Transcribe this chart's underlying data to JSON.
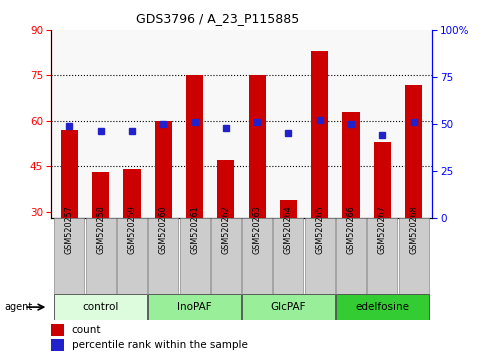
{
  "title": "GDS3796 / A_23_P115885",
  "samples": [
    "GSM520257",
    "GSM520258",
    "GSM520259",
    "GSM520260",
    "GSM520261",
    "GSM520262",
    "GSM520263",
    "GSM520264",
    "GSM520265",
    "GSM520266",
    "GSM520267",
    "GSM520268"
  ],
  "counts": [
    57,
    43,
    44,
    60,
    75,
    47,
    75,
    34,
    83,
    63,
    53,
    72
  ],
  "percentiles": [
    49,
    46,
    46,
    50,
    51,
    48,
    51,
    45,
    52,
    50,
    44,
    51
  ],
  "ylim_left": [
    28,
    90
  ],
  "ylim_right": [
    0,
    100
  ],
  "yticks_left": [
    30,
    45,
    60,
    75,
    90
  ],
  "yticks_right": [
    0,
    25,
    50,
    75,
    100
  ],
  "yticklabels_right": [
    "0",
    "25",
    "50",
    "75",
    "100%"
  ],
  "bar_color": "#cc0000",
  "dot_color": "#2222cc",
  "groups": [
    {
      "label": "control",
      "start": 0,
      "end": 3,
      "color": "#ddfcdd"
    },
    {
      "label": "InoPAF",
      "start": 3,
      "end": 6,
      "color": "#99ee99"
    },
    {
      "label": "GlcPAF",
      "start": 6,
      "end": 9,
      "color": "#99ee99"
    },
    {
      "label": "edelfosine",
      "start": 9,
      "end": 12,
      "color": "#33cc33"
    }
  ],
  "grid_yticks": [
    45,
    60,
    75
  ],
  "sample_box_color": "#cccccc",
  "plot_bg": "#f8f8f8",
  "legend_count_color": "#cc0000",
  "legend_pct_color": "#2222cc"
}
